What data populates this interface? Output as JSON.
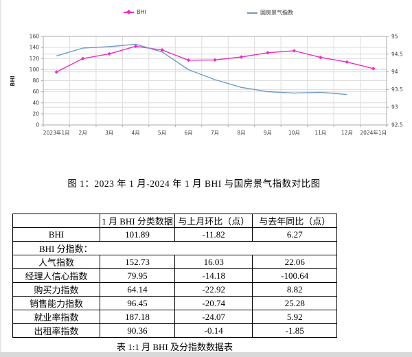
{
  "figure": {
    "caption": "图 1：2023 年 1 月-2024 年 1 月 BHI 与国房景气指数对比图"
  },
  "chart_data": {
    "type": "line",
    "categories": [
      "2023年1月",
      "2月",
      "3月",
      "4月",
      "5月",
      "6月",
      "7月",
      "8月",
      "9月",
      "10月",
      "11月",
      "12月",
      "2024年1月"
    ],
    "series": [
      {
        "name": "BHI",
        "axis": "left",
        "color": "#f02ac4",
        "marker": "diamond",
        "values": [
          95.62,
          119.9,
          128.5,
          142.1,
          135.5,
          117.0,
          117.4,
          122.8,
          130.5,
          134.0,
          122.0,
          113.71,
          101.89
        ]
      },
      {
        "name": "国房景气指数",
        "axis": "right",
        "color": "#709ac4",
        "marker": "none",
        "values": [
          94.45,
          94.67,
          94.71,
          94.78,
          94.56,
          94.06,
          93.78,
          93.56,
          93.44,
          93.4,
          93.42,
          93.36,
          null
        ]
      }
    ],
    "left_axis": {
      "title": "BHI",
      "min": 0,
      "max": 160,
      "ticks": [
        0,
        20,
        40,
        60,
        80,
        100,
        120,
        140,
        160
      ]
    },
    "right_axis": {
      "min": 92.5,
      "max": 95,
      "ticks": [
        92.5,
        93,
        93.5,
        94,
        94.5,
        95
      ]
    },
    "legend_position": "top",
    "grid": true
  },
  "table": {
    "headers": [
      "",
      "1 月 BHI 分类数据",
      "与上月环比（点）",
      "与去年同比（点）"
    ],
    "rows": [
      {
        "label": "BHI",
        "values": [
          "101.89",
          "-11.82",
          "6.27"
        ]
      },
      {
        "label": "BHI 分指数：",
        "span": true
      },
      {
        "label": "人气指数",
        "values": [
          "152.73",
          "16.03",
          "22.06"
        ]
      },
      {
        "label": "经理人信心指数",
        "values": [
          "79.95",
          "-14.18",
          "-100.64"
        ]
      },
      {
        "label": "购买力指数",
        "values": [
          "64.14",
          "-22.92",
          "8.82"
        ]
      },
      {
        "label": "销售能力指数",
        "values": [
          "96.45",
          "-20.74",
          "25.28"
        ]
      },
      {
        "label": "就业率指数",
        "values": [
          "187.18",
          "-24.07",
          "5.92"
        ]
      },
      {
        "label": "出租率指数",
        "values": [
          "90.36",
          "-0.14",
          "-1.85"
        ]
      }
    ],
    "caption": "表 1:1 月 BHI 及分指数数据表"
  },
  "colors": {
    "grid": "#dcdcdc",
    "axis": "#ababab",
    "tick_text": "#3a3a3a"
  }
}
